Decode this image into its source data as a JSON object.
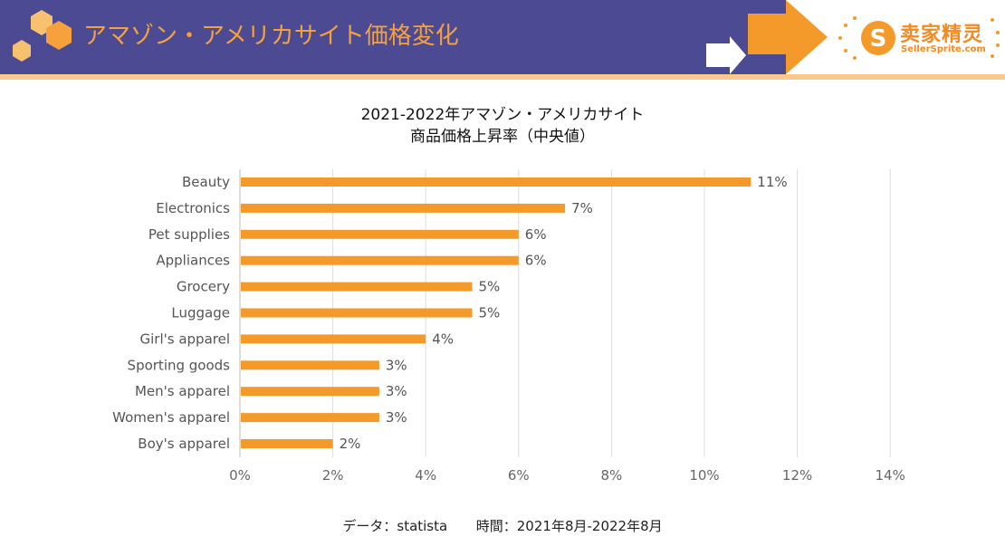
{
  "header": {
    "title": "アマゾン・アメリカサイト価格変化",
    "logo_cn": "卖家精灵",
    "logo_en": "SellerSprite.com"
  },
  "colors": {
    "banner": "#4b4a92",
    "accent": "#f6a13b",
    "bar": "#f39a2b",
    "banner_line": "#f7c98d"
  },
  "chart_title_line1": "2021-2022年アマゾン・アメリカサイト",
  "chart_title_line2": "商品価格上昇率（中央値）",
  "footer": {
    "source": "データ：statista",
    "period": "時間：2021年8月-2022年8月"
  },
  "chart_data": {
    "type": "bar",
    "orientation": "horizontal",
    "title": "2021-2022年アマゾン・アメリカサイト 商品価格上昇率（中央値）",
    "categories": [
      "Beauty",
      "Electronics",
      "Pet supplies",
      "Appliances",
      "Grocery",
      "Luggage",
      "Girl's apparel",
      "Sporting goods",
      "Men's apparel",
      "Women's apparel",
      "Boy's apparel"
    ],
    "values": [
      11,
      7,
      6,
      6,
      5,
      5,
      4,
      3,
      3,
      3,
      2
    ],
    "value_labels": [
      "11%",
      "7%",
      "6%",
      "6%",
      "5%",
      "5%",
      "4%",
      "3%",
      "3%",
      "3%",
      "2%"
    ],
    "xlim": [
      0,
      14
    ],
    "xticks": [
      0,
      2,
      4,
      6,
      8,
      10,
      12,
      14
    ],
    "xtick_labels": [
      "0%",
      "2%",
      "4%",
      "6%",
      "8%",
      "10%",
      "12%",
      "14%"
    ],
    "grid": true,
    "legend": "none",
    "xlabel": "",
    "ylabel": ""
  }
}
